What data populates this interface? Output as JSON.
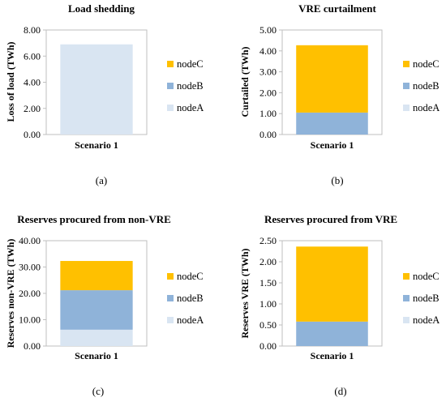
{
  "chart_data": [
    {
      "type": "bar",
      "stacked": true,
      "title": "Load shedding",
      "ylabel": "Loss of load (TWh)",
      "categories": [
        "Scenario 1"
      ],
      "ylim": [
        0,
        8
      ],
      "ytick_labels": [
        "0.00",
        "2.00",
        "4.00",
        "6.00",
        "8.00"
      ],
      "series": [
        {
          "name": "nodeA",
          "values": [
            6.9
          ]
        },
        {
          "name": "nodeB",
          "values": [
            0
          ]
        },
        {
          "name": "nodeC",
          "values": [
            0
          ]
        }
      ],
      "legend": [
        "nodeC",
        "nodeB",
        "nodeA"
      ],
      "legend_position": "right",
      "panel_label": "(a)"
    },
    {
      "type": "bar",
      "stacked": true,
      "title": "VRE curtailment",
      "ylabel": "Curtailed (TWh)",
      "categories": [
        "Scenario 1"
      ],
      "ylim": [
        0,
        5
      ],
      "ytick_labels": [
        "0.00",
        "1.00",
        "2.00",
        "3.00",
        "4.00",
        "5.00"
      ],
      "series": [
        {
          "name": "nodeA",
          "values": [
            0
          ]
        },
        {
          "name": "nodeB",
          "values": [
            1.05
          ]
        },
        {
          "name": "nodeC",
          "values": [
            3.22
          ]
        }
      ],
      "legend": [
        "nodeC",
        "nodeB",
        "nodeA"
      ],
      "legend_position": "right",
      "panel_label": "(b)"
    },
    {
      "type": "bar",
      "stacked": true,
      "title": "Reserves procured from non-VRE",
      "ylabel": "Reserves non-VRE (TWh)",
      "categories": [
        "Scenario 1"
      ],
      "ylim": [
        0,
        40
      ],
      "ytick_labels": [
        "0.00",
        "10.00",
        "20.00",
        "30.00",
        "40.00"
      ],
      "series": [
        {
          "name": "nodeA",
          "values": [
            6.2
          ]
        },
        {
          "name": "nodeB",
          "values": [
            15.0
          ]
        },
        {
          "name": "nodeC",
          "values": [
            11.1
          ]
        }
      ],
      "legend": [
        "nodeC",
        "nodeB",
        "nodeA"
      ],
      "legend_position": "right",
      "panel_label": "(c)"
    },
    {
      "type": "bar",
      "stacked": true,
      "title": "Reserves procured from VRE",
      "ylabel": "Reserves VRE (TWh)",
      "categories": [
        "Scenario 1"
      ],
      "ylim": [
        0,
        2.5
      ],
      "ytick_labels": [
        "0.00",
        "0.50",
        "1.00",
        "1.50",
        "2.00",
        "2.50"
      ],
      "series": [
        {
          "name": "nodeA",
          "values": [
            0
          ]
        },
        {
          "name": "nodeB",
          "values": [
            0.58
          ]
        },
        {
          "name": "nodeC",
          "values": [
            1.78
          ]
        }
      ],
      "legend": [
        "nodeC",
        "nodeB",
        "nodeA"
      ],
      "legend_position": "right",
      "panel_label": "(d)"
    }
  ],
  "colors": {
    "nodeA": "#d9e5f2",
    "nodeB": "#8fb3d9",
    "nodeC": "#ffc000"
  }
}
